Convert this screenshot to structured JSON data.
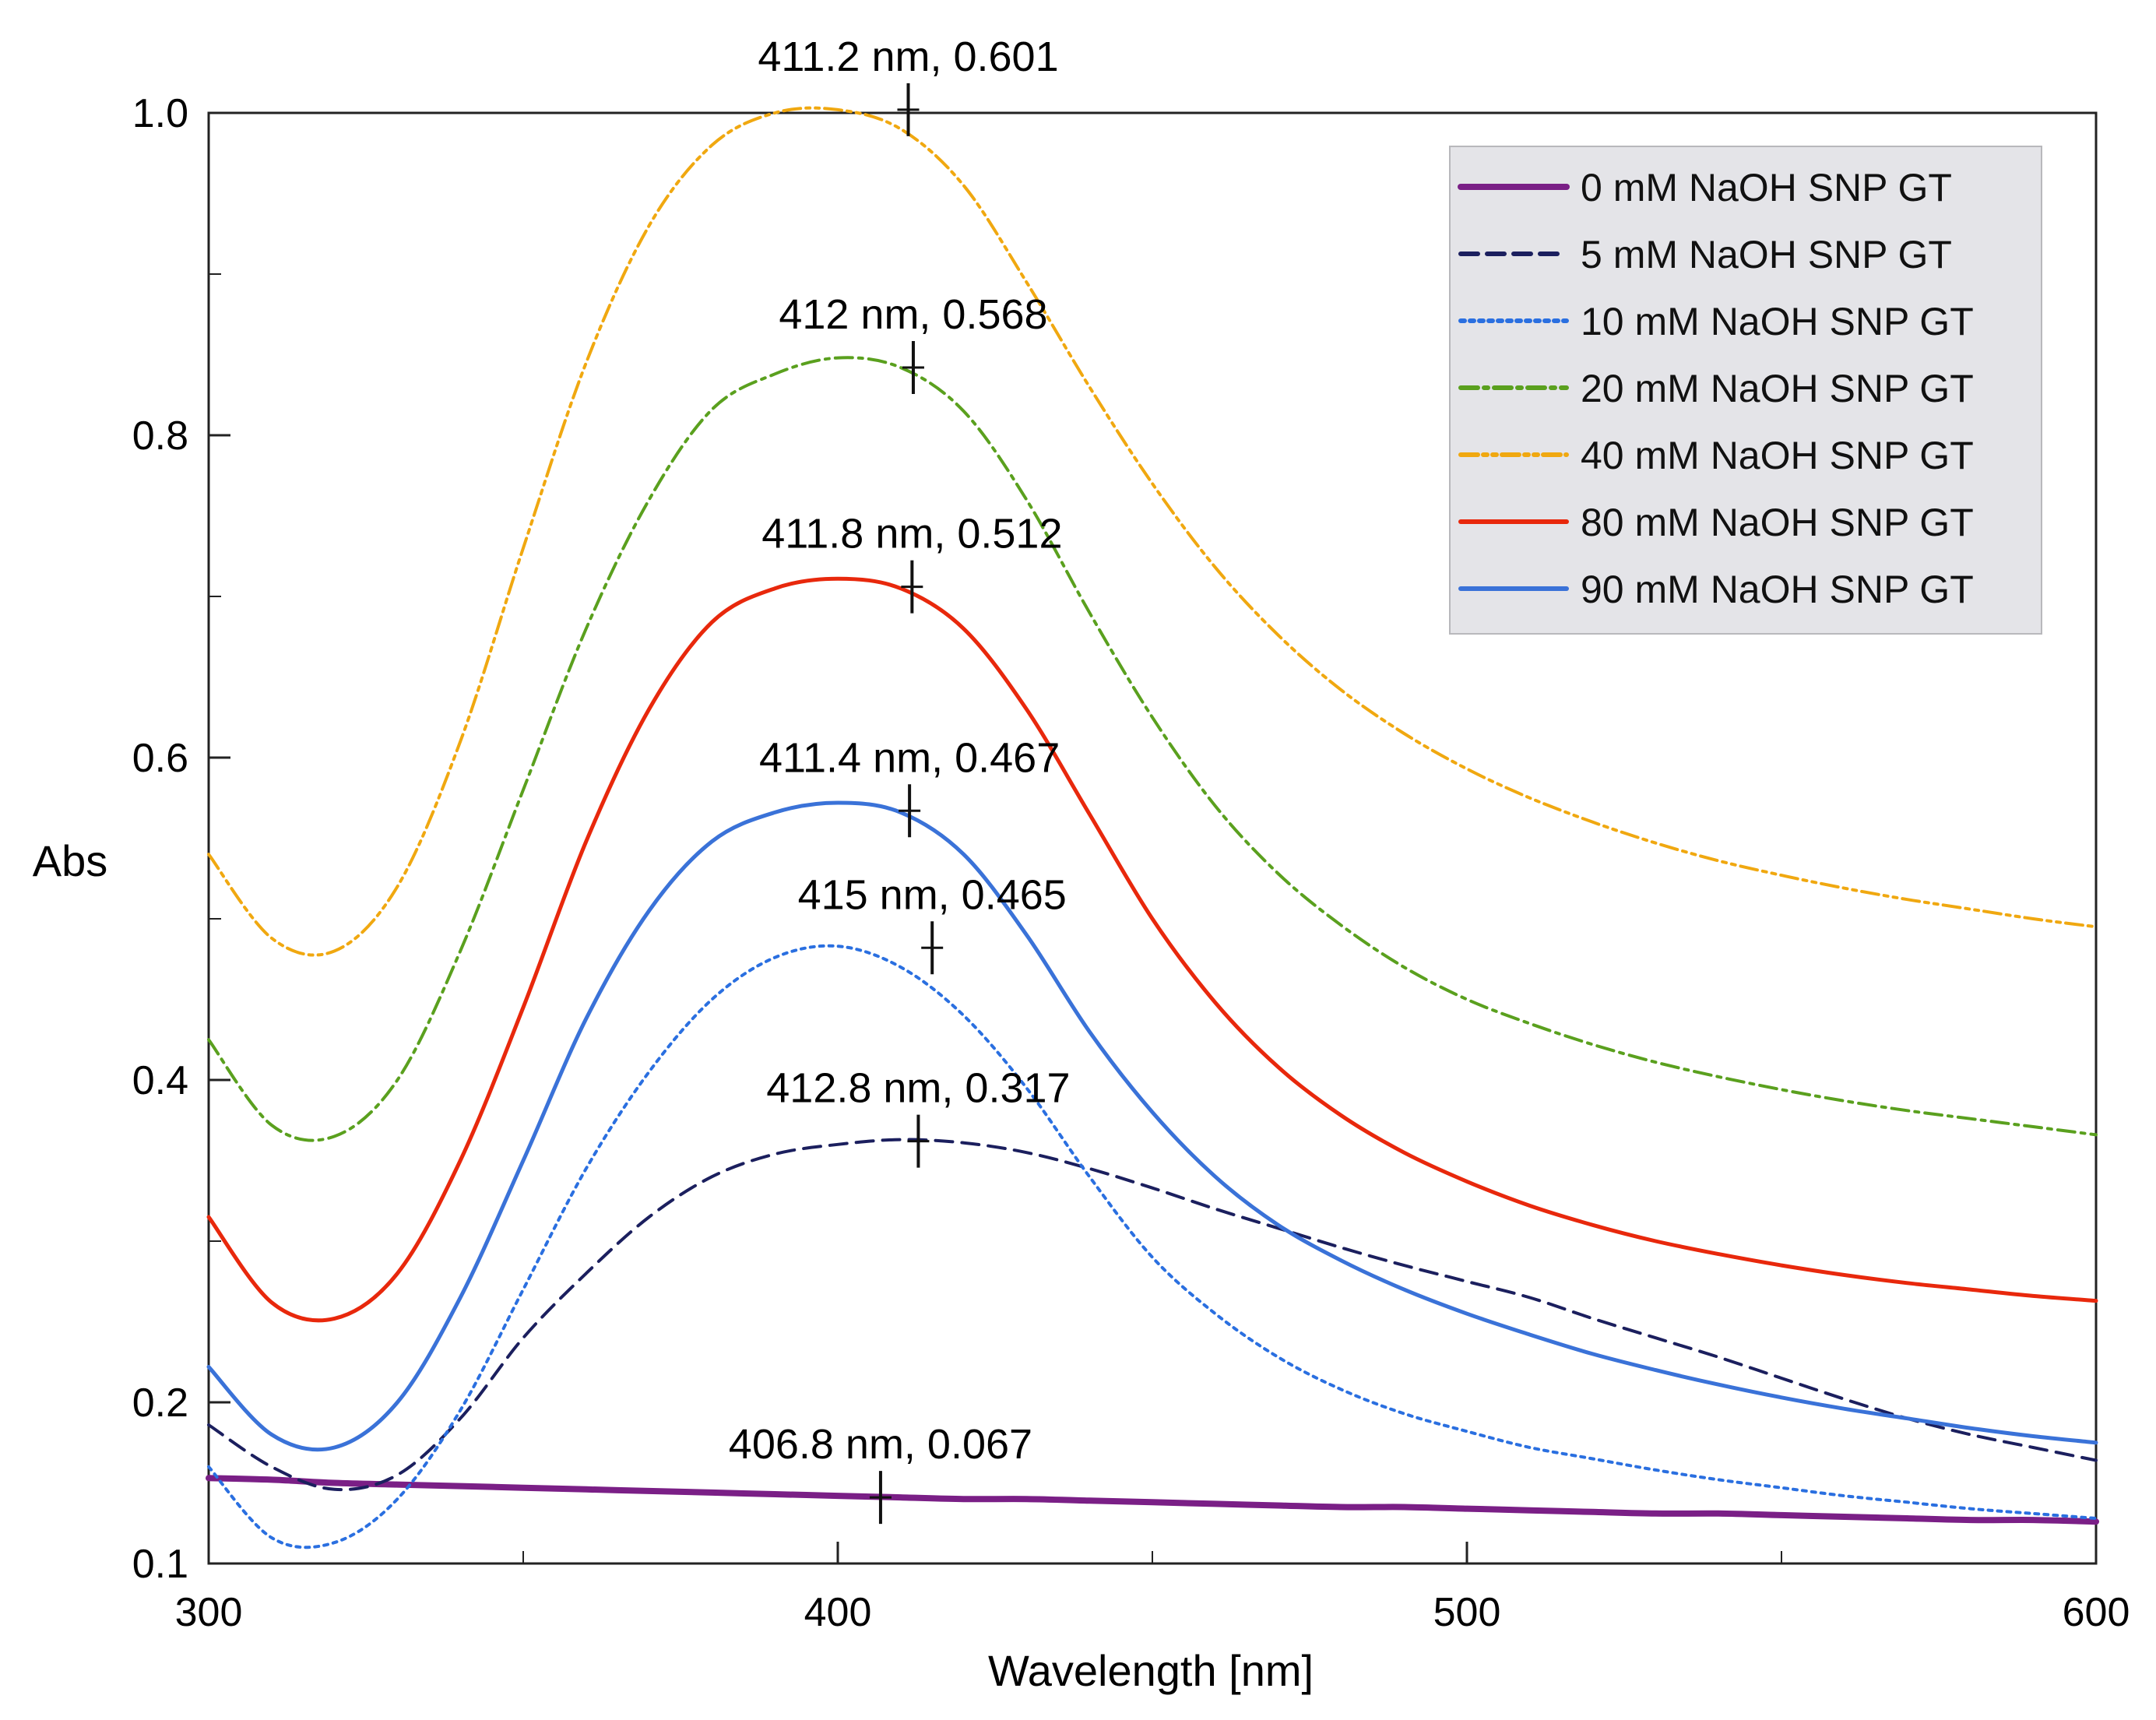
{
  "chart_data": {
    "type": "line",
    "title": "",
    "xlabel": "Wavelength [nm]",
    "ylabel": "Abs",
    "xlim": [
      300,
      600
    ],
    "ylim": [
      0.1,
      1.0
    ],
    "x_ticks": [
      300,
      400,
      500,
      600
    ],
    "x_tick_labels": [
      "300",
      "400",
      "500",
      "600"
    ],
    "y_ticks": [
      0.1,
      0.2,
      0.4,
      0.6,
      0.8,
      1.0
    ],
    "y_tick_labels": [
      "0.1",
      "0.2",
      "0.4",
      "0.6",
      "0.8",
      "1.0"
    ],
    "legend_position": "top-right",
    "x": [
      300,
      310,
      320,
      330,
      340,
      350,
      360,
      370,
      380,
      390,
      400,
      410,
      420,
      430,
      440,
      450,
      460,
      470,
      480,
      490,
      500,
      510,
      520,
      530,
      540,
      550,
      560,
      570,
      580,
      590,
      600
    ],
    "series": [
      {
        "name": "0 mM NaOH SNP GT",
        "color": "#7a1f86",
        "dash": "solid",
        "values": [
          0.153,
          0.152,
          0.15,
          0.149,
          0.148,
          0.147,
          0.146,
          0.145,
          0.144,
          0.143,
          0.142,
          0.141,
          0.14,
          0.14,
          0.139,
          0.138,
          0.137,
          0.136,
          0.135,
          0.135,
          0.134,
          0.133,
          0.132,
          0.131,
          0.131,
          0.13,
          0.129,
          0.128,
          0.127,
          0.127,
          0.126
        ]
      },
      {
        "name": "5 mM NaOH SNP GT",
        "color": "#1b1f5e",
        "dash": "dashed",
        "values": [
          0.186,
          0.16,
          0.146,
          0.155,
          0.19,
          0.24,
          0.28,
          0.315,
          0.34,
          0.354,
          0.36,
          0.363,
          0.361,
          0.355,
          0.345,
          0.333,
          0.32,
          0.308,
          0.296,
          0.285,
          0.275,
          0.265,
          0.252,
          0.24,
          0.228,
          0.215,
          0.202,
          0.19,
          0.18,
          0.172,
          0.164
        ]
      },
      {
        "name": "10 mM NaOH SNP GT",
        "color": "#2a6fe0",
        "dash": "dotted",
        "values": [
          0.16,
          0.116,
          0.113,
          0.14,
          0.195,
          0.27,
          0.345,
          0.405,
          0.45,
          0.476,
          0.483,
          0.47,
          0.44,
          0.395,
          0.34,
          0.29,
          0.255,
          0.228,
          0.208,
          0.193,
          0.182,
          0.172,
          0.165,
          0.158,
          0.152,
          0.147,
          0.142,
          0.138,
          0.134,
          0.131,
          0.128
        ]
      },
      {
        "name": "20 mM NaOH SNP GT",
        "color": "#5aa01e",
        "dash": "dashdot",
        "values": [
          0.425,
          0.372,
          0.365,
          0.4,
          0.48,
          0.58,
          0.68,
          0.76,
          0.816,
          0.838,
          0.848,
          0.842,
          0.815,
          0.76,
          0.69,
          0.625,
          0.57,
          0.528,
          0.496,
          0.47,
          0.45,
          0.435,
          0.422,
          0.411,
          0.402,
          0.394,
          0.387,
          0.381,
          0.376,
          0.371,
          0.366
        ]
      },
      {
        "name": "40 mM NaOH SNP GT",
        "color": "#f0a810",
        "dash": "dashdotdot",
        "values": [
          0.54,
          0.488,
          0.48,
          0.52,
          0.61,
          0.73,
          0.845,
          0.93,
          0.98,
          1.0,
          1.002,
          0.99,
          0.955,
          0.895,
          0.83,
          0.77,
          0.718,
          0.676,
          0.642,
          0.615,
          0.593,
          0.575,
          0.56,
          0.547,
          0.536,
          0.527,
          0.519,
          0.512,
          0.506,
          0.5,
          0.495
        ]
      },
      {
        "name": "80 mM NaOH SNP GT",
        "color": "#e8280c",
        "dash": "solid",
        "values": [
          0.315,
          0.262,
          0.252,
          0.28,
          0.35,
          0.445,
          0.548,
          0.63,
          0.684,
          0.705,
          0.711,
          0.705,
          0.68,
          0.63,
          0.565,
          0.5,
          0.448,
          0.408,
          0.378,
          0.355,
          0.337,
          0.322,
          0.31,
          0.3,
          0.292,
          0.285,
          0.279,
          0.274,
          0.27,
          0.266,
          0.263
        ]
      },
      {
        "name": "90 mM NaOH SNP GT",
        "color": "#3a72d8",
        "dash": "solid",
        "values": [
          0.222,
          0.18,
          0.172,
          0.2,
          0.265,
          0.35,
          0.438,
          0.505,
          0.548,
          0.566,
          0.572,
          0.566,
          0.54,
          0.49,
          0.43,
          0.38,
          0.34,
          0.31,
          0.288,
          0.27,
          0.255,
          0.242,
          0.23,
          0.22,
          0.211,
          0.203,
          0.196,
          0.19,
          0.184,
          0.179,
          0.175
        ]
      }
    ],
    "annotations": [
      {
        "text": "411.2 nm, 0.601",
        "x": 411.2,
        "y": 1.002
      },
      {
        "text": "412 nm, 0.568",
        "x": 412,
        "y": 0.842
      },
      {
        "text": "411.8 nm, 0.512",
        "x": 411.8,
        "y": 0.706
      },
      {
        "text": "411.4 nm, 0.467",
        "x": 411.4,
        "y": 0.567
      },
      {
        "text": "415 nm, 0.465",
        "x": 415,
        "y": 0.482
      },
      {
        "text": "412.8 nm, 0.317",
        "x": 412.8,
        "y": 0.362
      },
      {
        "text": "406.8 nm, 0.067",
        "x": 406.8,
        "y": 0.141
      }
    ]
  }
}
